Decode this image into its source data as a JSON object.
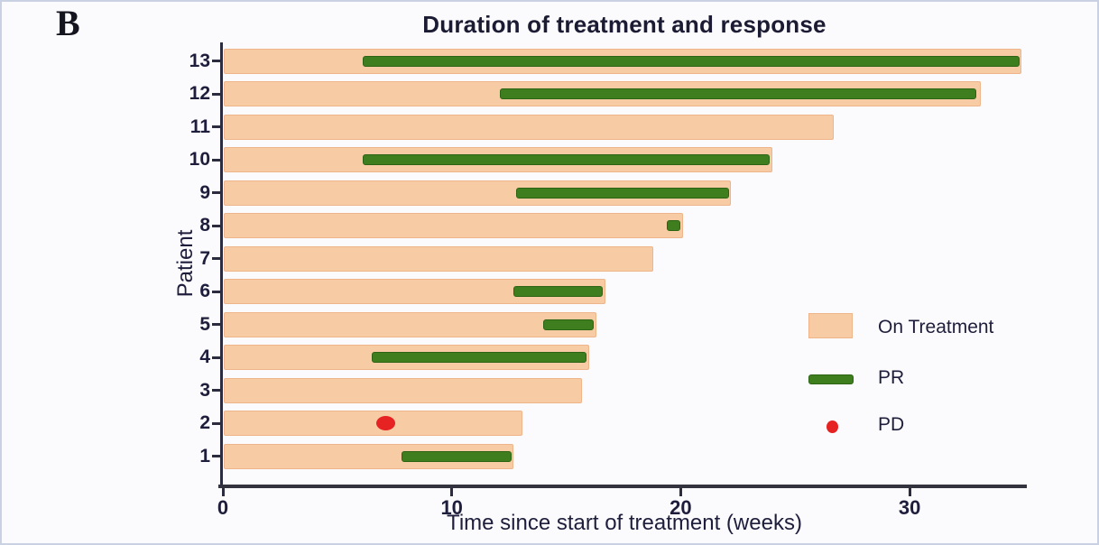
{
  "panel_label": "B",
  "chart_data": {
    "type": "bar",
    "subtype": "swimmer-plot",
    "title": "Duration of treatment and response",
    "xlabel": "Time since start of treatment (weeks)",
    "ylabel": "Patient",
    "xlim": [
      0,
      35
    ],
    "xticks": [
      0,
      10,
      20,
      30
    ],
    "grid": false,
    "legend": {
      "position": "right",
      "items": [
        {
          "label": "On Treatment",
          "type": "bar",
          "color": "#f7cba3"
        },
        {
          "label": "PR",
          "type": "segment",
          "color": "#3e7e1f"
        },
        {
          "label": "PD",
          "type": "dot",
          "color": "#e62222"
        }
      ]
    },
    "patients": [
      {
        "id": 13,
        "on_treatment": [
          0,
          34.9
        ],
        "pr": [
          6.1,
          34.8
        ],
        "pd": null
      },
      {
        "id": 12,
        "on_treatment": [
          0,
          33.1
        ],
        "pr": [
          12.1,
          32.9
        ],
        "pd": null
      },
      {
        "id": 11,
        "on_treatment": [
          0,
          26.7
        ],
        "pr": null,
        "pd": null
      },
      {
        "id": 10,
        "on_treatment": [
          0,
          24.0
        ],
        "pr": [
          6.1,
          23.9
        ],
        "pd": null
      },
      {
        "id": 9,
        "on_treatment": [
          0,
          22.2
        ],
        "pr": [
          12.8,
          22.1
        ],
        "pd": null
      },
      {
        "id": 8,
        "on_treatment": [
          0,
          20.1
        ],
        "pr": [
          19.4,
          20.0
        ],
        "pd": null
      },
      {
        "id": 7,
        "on_treatment": [
          0,
          18.8
        ],
        "pr": null,
        "pd": null
      },
      {
        "id": 6,
        "on_treatment": [
          0,
          16.7
        ],
        "pr": [
          12.7,
          16.6
        ],
        "pd": null
      },
      {
        "id": 5,
        "on_treatment": [
          0,
          16.3
        ],
        "pr": [
          14.0,
          16.2
        ],
        "pd": null
      },
      {
        "id": 4,
        "on_treatment": [
          0,
          16.0
        ],
        "pr": [
          6.5,
          15.9
        ],
        "pd": null
      },
      {
        "id": 3,
        "on_treatment": [
          0,
          15.7
        ],
        "pr": null,
        "pd": null
      },
      {
        "id": 2,
        "on_treatment": [
          0,
          13.1
        ],
        "pr": null,
        "pd": 7.1
      },
      {
        "id": 1,
        "on_treatment": [
          0,
          12.7
        ],
        "pr": [
          7.8,
          12.6
        ],
        "pd": null
      }
    ],
    "colors": {
      "on_treatment": "#f7cba3",
      "on_treatment_border": "#eeb48a",
      "pr": "#3e7e1f",
      "pd": "#e62222",
      "text": "#1e1e3c",
      "axis": "#2c2c40"
    }
  }
}
